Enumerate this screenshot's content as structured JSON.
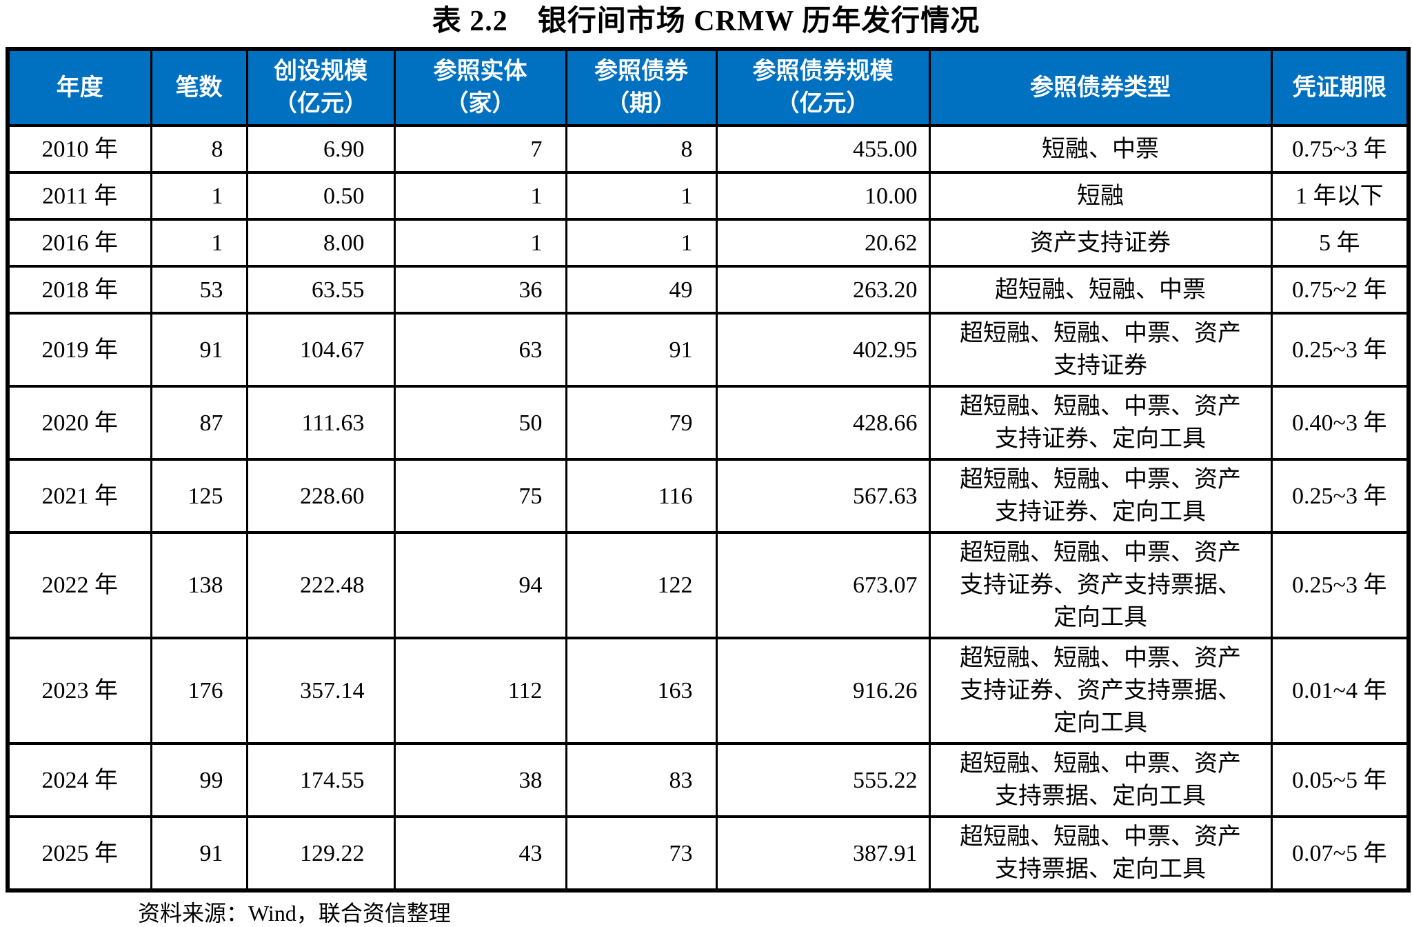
{
  "title": "表 2.2　银行间市场 CRMW 历年发行情况",
  "source_note": "资料来源：Wind，联合资信整理",
  "colors": {
    "header_bg": "#0070C0",
    "header_text": "#FFFFFF",
    "border": "#000000",
    "body_bg": "#FFFFFF"
  },
  "table": {
    "columns": [
      {
        "key": "year",
        "label": "年度"
      },
      {
        "key": "count",
        "label": "笔数"
      },
      {
        "key": "scale",
        "label": "创设规模\n（亿元）"
      },
      {
        "key": "entities",
        "label": "参照实体\n（家）"
      },
      {
        "key": "bonds",
        "label": "参照债券\n（期）"
      },
      {
        "key": "bond_scale",
        "label": "参照债券规模\n（亿元）"
      },
      {
        "key": "bond_types",
        "label": "参照债券类型"
      },
      {
        "key": "term",
        "label": "凭证期限"
      }
    ],
    "rows": [
      {
        "year": "2010 年",
        "count": "8",
        "scale": "6.90",
        "entities": "7",
        "bonds": "8",
        "bond_scale": "455.00",
        "bond_types": "短融、中票",
        "term": "0.75~3 年"
      },
      {
        "year": "2011 年",
        "count": "1",
        "scale": "0.50",
        "entities": "1",
        "bonds": "1",
        "bond_scale": "10.00",
        "bond_types": "短融",
        "term": "1 年以下"
      },
      {
        "year": "2016 年",
        "count": "1",
        "scale": "8.00",
        "entities": "1",
        "bonds": "1",
        "bond_scale": "20.62",
        "bond_types": "资产支持证券",
        "term": "5 年"
      },
      {
        "year": "2018 年",
        "count": "53",
        "scale": "63.55",
        "entities": "36",
        "bonds": "49",
        "bond_scale": "263.20",
        "bond_types": "超短融、短融、中票",
        "term": "0.75~2 年"
      },
      {
        "year": "2019 年",
        "count": "91",
        "scale": "104.67",
        "entities": "63",
        "bonds": "91",
        "bond_scale": "402.95",
        "bond_types": "超短融、短融、中票、资产支持证券",
        "term": "0.25~3 年"
      },
      {
        "year": "2020 年",
        "count": "87",
        "scale": "111.63",
        "entities": "50",
        "bonds": "79",
        "bond_scale": "428.66",
        "bond_types": "超短融、短融、中票、资产支持证券、定向工具",
        "term": "0.40~3 年"
      },
      {
        "year": "2021 年",
        "count": "125",
        "scale": "228.60",
        "entities": "75",
        "bonds": "116",
        "bond_scale": "567.63",
        "bond_types": "超短融、短融、中票、资产支持证券、定向工具",
        "term": "0.25~3 年"
      },
      {
        "year": "2022 年",
        "count": "138",
        "scale": "222.48",
        "entities": "94",
        "bonds": "122",
        "bond_scale": "673.07",
        "bond_types": "超短融、短融、中票、资产支持证券、资产支持票据、定向工具",
        "term": "0.25~3 年"
      },
      {
        "year": "2023 年",
        "count": "176",
        "scale": "357.14",
        "entities": "112",
        "bonds": "163",
        "bond_scale": "916.26",
        "bond_types": "超短融、短融、中票、资产支持证券、资产支持票据、定向工具",
        "term": "0.01~4 年"
      },
      {
        "year": "2024 年",
        "count": "99",
        "scale": "174.55",
        "entities": "38",
        "bonds": "83",
        "bond_scale": "555.22",
        "bond_types": "超短融、短融、中票、资产支持票据、定向工具",
        "term": "0.05~5 年"
      },
      {
        "year": "2025 年",
        "count": "91",
        "scale": "129.22",
        "entities": "43",
        "bonds": "73",
        "bond_scale": "387.91",
        "bond_types": "超短融、短融、中票、资产支持票据、定向工具",
        "term": "0.07~5 年"
      }
    ]
  }
}
